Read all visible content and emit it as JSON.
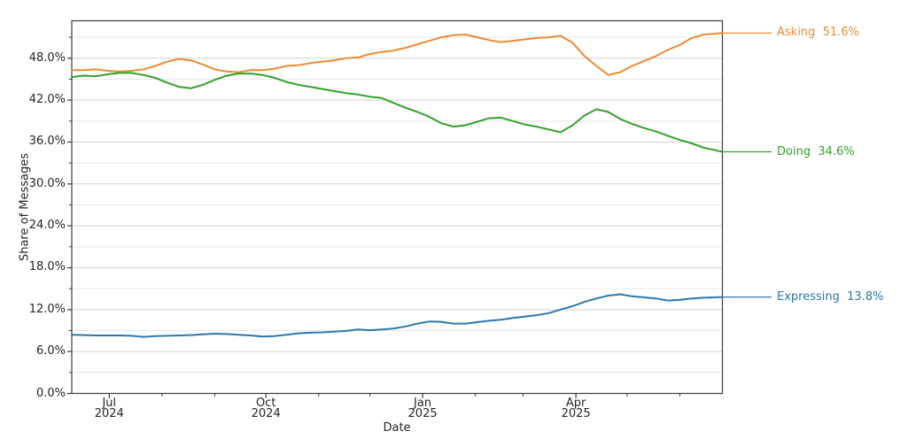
{
  "chart_data": {
    "type": "line",
    "title": "",
    "xlabel": "Date",
    "ylabel": "Share of Messages",
    "legend_position": "end-of-line labels, right of plot",
    "grid": "horizontal major every 6% (darker) and minor every 3% (lighter), no vertical gridlines",
    "x_domain": [
      "2024-06-09",
      "2025-06-26"
    ],
    "ylim": [
      0,
      53.36
    ],
    "y_axis": {
      "major_tick_step_pct": 6,
      "minor_tick_step_pct": 3,
      "major_tick_values": [
        0,
        6,
        12,
        18,
        24,
        30,
        36,
        42,
        48
      ],
      "major_tick_labels": [
        "0.0%",
        "6.0%",
        "12.0%",
        "18.0%",
        "24.0%",
        "30.0%",
        "36.0%",
        "42.0%",
        "48.0%"
      ]
    },
    "x_axis": {
      "major_ticks": [
        {
          "date": "2024-07-01",
          "line1": "Jul",
          "line2": "2024"
        },
        {
          "date": "2024-10-01",
          "line1": "Oct",
          "line2": "2024"
        },
        {
          "date": "2025-01-01",
          "line1": "Jan",
          "line2": "2025"
        },
        {
          "date": "2025-04-01",
          "line1": "Apr",
          "line2": "2025"
        }
      ],
      "minor_tick_dates": [
        "2024-08-01",
        "2024-09-01",
        "2024-11-01",
        "2024-12-01",
        "2025-02-01",
        "2025-03-01",
        "2025-05-01",
        "2025-06-01"
      ]
    },
    "x_dates": [
      "2024-06-09",
      "2024-06-16",
      "2024-06-23",
      "2024-06-30",
      "2024-07-07",
      "2024-07-14",
      "2024-07-21",
      "2024-07-28",
      "2024-08-04",
      "2024-08-11",
      "2024-08-18",
      "2024-08-25",
      "2024-09-01",
      "2024-09-08",
      "2024-09-15",
      "2024-09-22",
      "2024-09-29",
      "2024-10-06",
      "2024-10-13",
      "2024-10-20",
      "2024-10-27",
      "2024-11-03",
      "2024-11-10",
      "2024-11-17",
      "2024-11-24",
      "2024-12-01",
      "2024-12-08",
      "2024-12-15",
      "2024-12-22",
      "2024-12-29",
      "2025-01-05",
      "2025-01-12",
      "2025-01-19",
      "2025-01-26",
      "2025-02-02",
      "2025-02-09",
      "2025-02-16",
      "2025-02-23",
      "2025-03-02",
      "2025-03-09",
      "2025-03-16",
      "2025-03-23",
      "2025-03-30",
      "2025-04-06",
      "2025-04-13",
      "2025-04-20",
      "2025-04-27",
      "2025-05-04",
      "2025-05-11",
      "2025-05-18",
      "2025-05-25",
      "2025-06-01",
      "2025-06-08",
      "2025-06-15",
      "2025-06-26"
    ],
    "series": [
      {
        "id": "asking",
        "name": "Asking",
        "end_label": "51.6%",
        "color": "#ec8a33",
        "values": [
          46.3,
          46.3,
          46.4,
          46.2,
          46.1,
          46.2,
          46.4,
          46.9,
          47.5,
          47.9,
          47.7,
          47.1,
          46.4,
          46.1,
          46.0,
          46.3,
          46.3,
          46.5,
          46.9,
          47.0,
          47.3,
          47.5,
          47.7,
          48.0,
          48.1,
          48.6,
          48.9,
          49.1,
          49.5,
          50.0,
          50.5,
          51.0,
          51.3,
          51.4,
          51.0,
          50.6,
          50.3,
          50.5,
          50.7,
          50.9,
          51.0,
          51.2,
          50.2,
          48.3,
          46.9,
          45.6,
          46.0,
          46.9,
          47.6,
          48.3,
          49.2,
          49.9,
          50.9,
          51.4,
          51.6
        ]
      },
      {
        "id": "doing",
        "name": "Doing",
        "end_label": "34.6%",
        "color": "#33a02c",
        "values": [
          45.3,
          45.5,
          45.4,
          45.7,
          45.9,
          45.9,
          45.6,
          45.2,
          44.5,
          43.9,
          43.7,
          44.2,
          44.9,
          45.5,
          45.8,
          45.8,
          45.6,
          45.2,
          44.6,
          44.2,
          43.9,
          43.6,
          43.3,
          43.0,
          42.8,
          42.5,
          42.3,
          41.6,
          40.9,
          40.3,
          39.6,
          38.7,
          38.2,
          38.4,
          38.9,
          39.4,
          39.5,
          39.0,
          38.5,
          38.2,
          37.8,
          37.4,
          38.4,
          39.8,
          40.7,
          40.3,
          39.3,
          38.6,
          38.0,
          37.5,
          36.9,
          36.3,
          35.8,
          35.2,
          34.6
        ]
      },
      {
        "id": "expressing",
        "name": "Expressing",
        "end_label": "13.8%",
        "color": "#2d77ab",
        "values": [
          8.4,
          8.35,
          8.3,
          8.3,
          8.3,
          8.25,
          8.1,
          8.2,
          8.25,
          8.3,
          8.35,
          8.45,
          8.55,
          8.5,
          8.4,
          8.3,
          8.15,
          8.2,
          8.4,
          8.6,
          8.7,
          8.75,
          8.85,
          8.95,
          9.15,
          9.05,
          9.15,
          9.3,
          9.6,
          10.0,
          10.3,
          10.25,
          10.0,
          10.0,
          10.2,
          10.4,
          10.55,
          10.8,
          11.0,
          11.2,
          11.5,
          12.0,
          12.5,
          13.1,
          13.6,
          14.0,
          14.2,
          13.9,
          13.75,
          13.6,
          13.3,
          13.4,
          13.6,
          13.7,
          13.8
        ]
      }
    ],
    "colors": {
      "grid_major": "#d3d3d3",
      "grid_minor": "#e8e8e8",
      "spine": "#3d3d3d",
      "text": "#262626"
    }
  }
}
